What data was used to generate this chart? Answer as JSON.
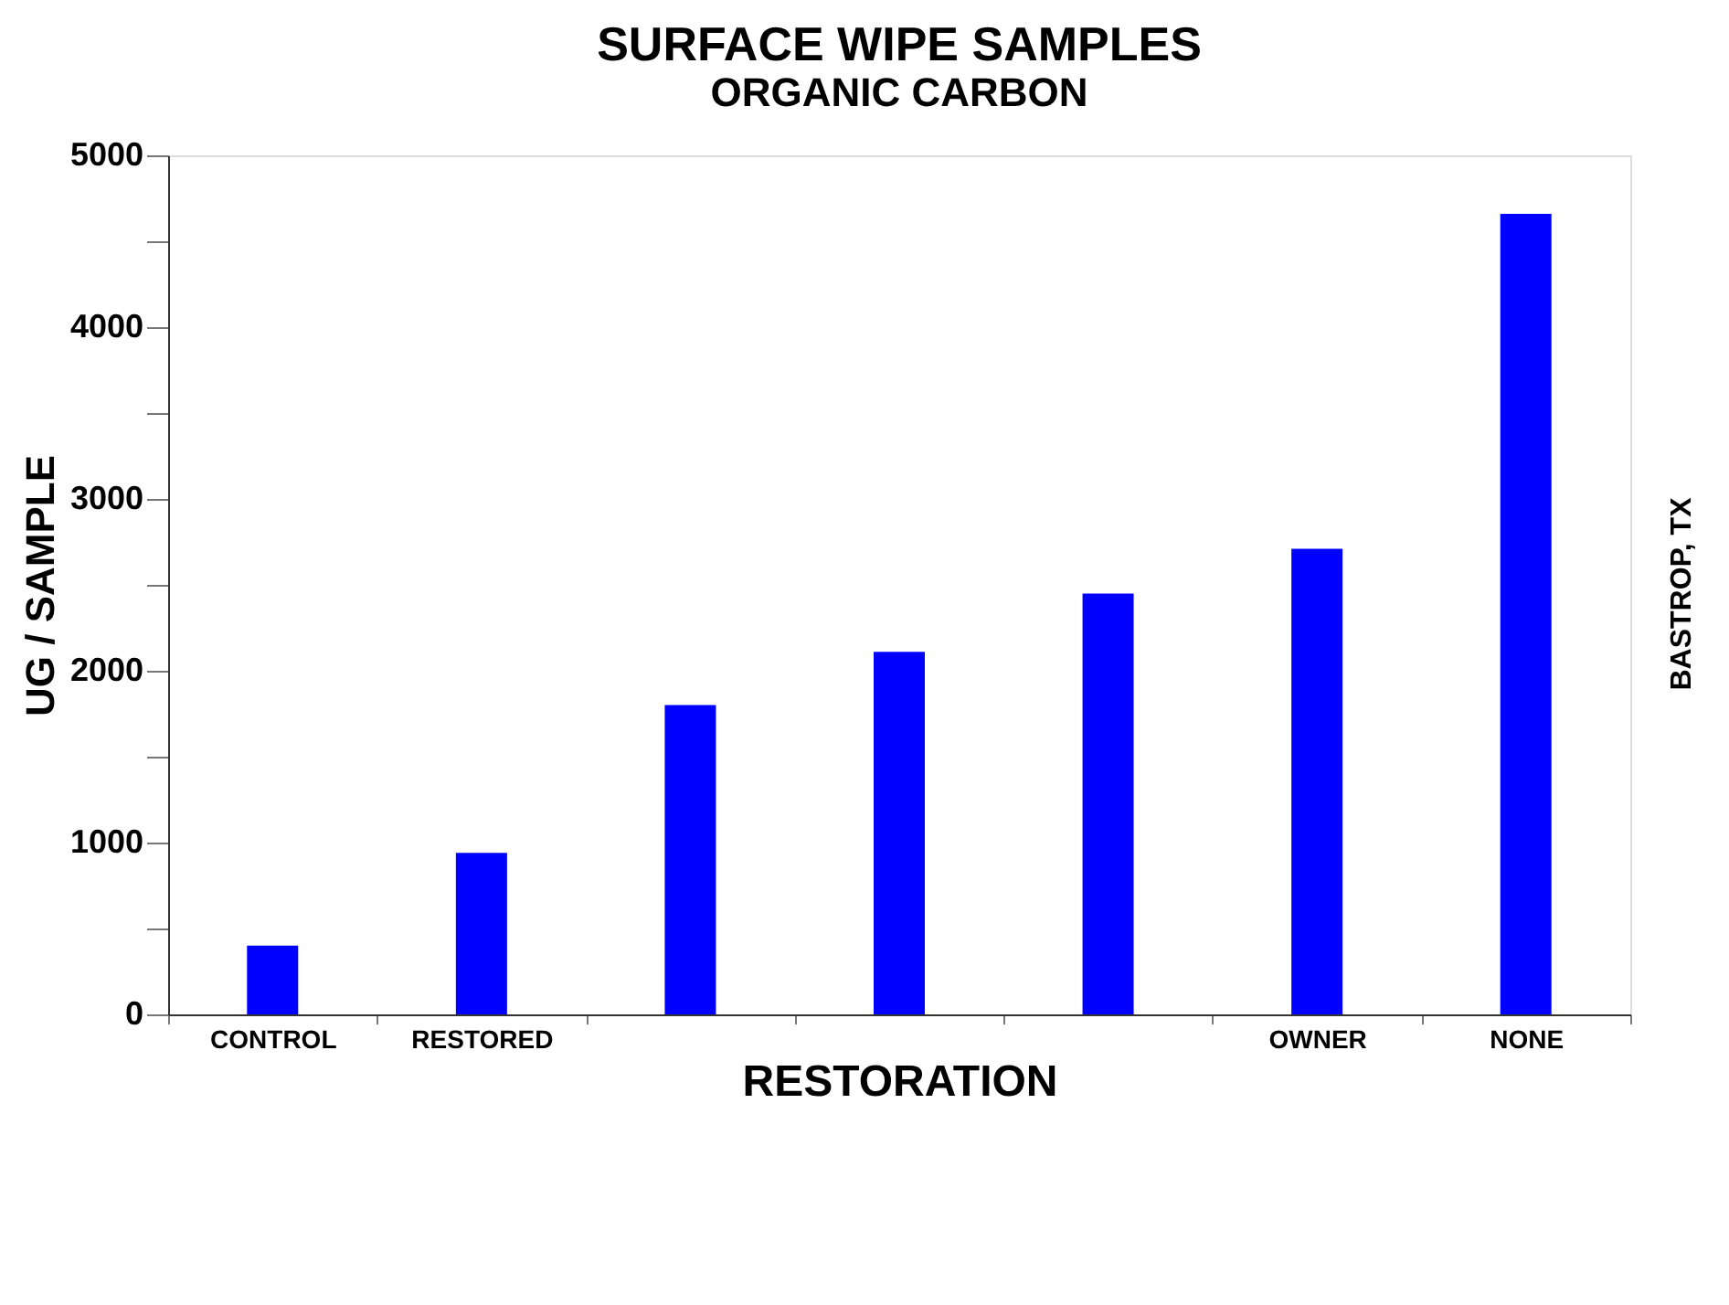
{
  "chart_data": {
    "type": "bar",
    "title": "SURFACE WIPE SAMPLES",
    "subtitle": "ORGANIC CARBON",
    "xlabel": "RESTORATION",
    "ylabel": "UG / SAMPLE",
    "categories": [
      "CONTROL",
      "RESTORED",
      null,
      null,
      null,
      "OWNER",
      "NONE"
    ],
    "values": [
      400,
      940,
      1800,
      2110,
      2450,
      2710,
      4660
    ],
    "color": "#0000ff",
    "ylim": [
      0,
      5000
    ],
    "yticks": [
      0,
      {
        "value": 500,
        "label": null
      },
      1000,
      {
        "value": 1500,
        "label": null
      },
      2000,
      {
        "value": 2500,
        "label": null
      },
      3000,
      {
        "value": 3500,
        "label": null
      },
      4000,
      {
        "value": 4500,
        "label": null
      },
      5000
    ],
    "grid": false,
    "annotations": [
      "BASTROP, TX"
    ]
  }
}
